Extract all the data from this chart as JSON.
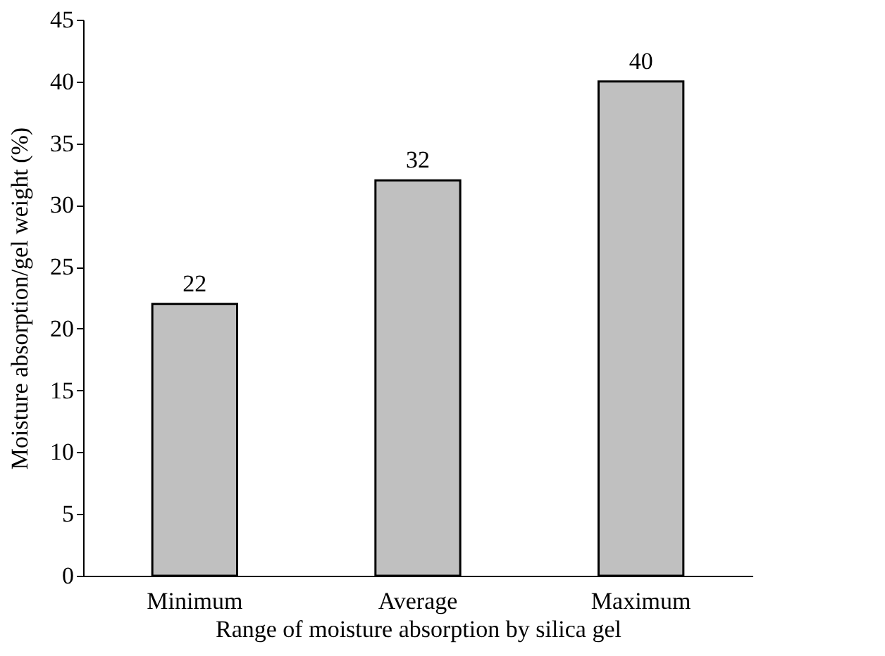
{
  "chart_data": {
    "type": "bar",
    "xlabel": "Range of moisture absorption by silica gel",
    "ylabel": "Moisture absorption/gel weight (%)",
    "categories": [
      "Minimum",
      "Average",
      "Maximum"
    ],
    "values": [
      22,
      32,
      40
    ],
    "color": "#c0c0c0",
    "ylim": [
      0,
      45
    ],
    "yticks": [
      0,
      5,
      10,
      15,
      20,
      25,
      30,
      35,
      40,
      45
    ],
    "grid": false,
    "data_labels": true
  }
}
